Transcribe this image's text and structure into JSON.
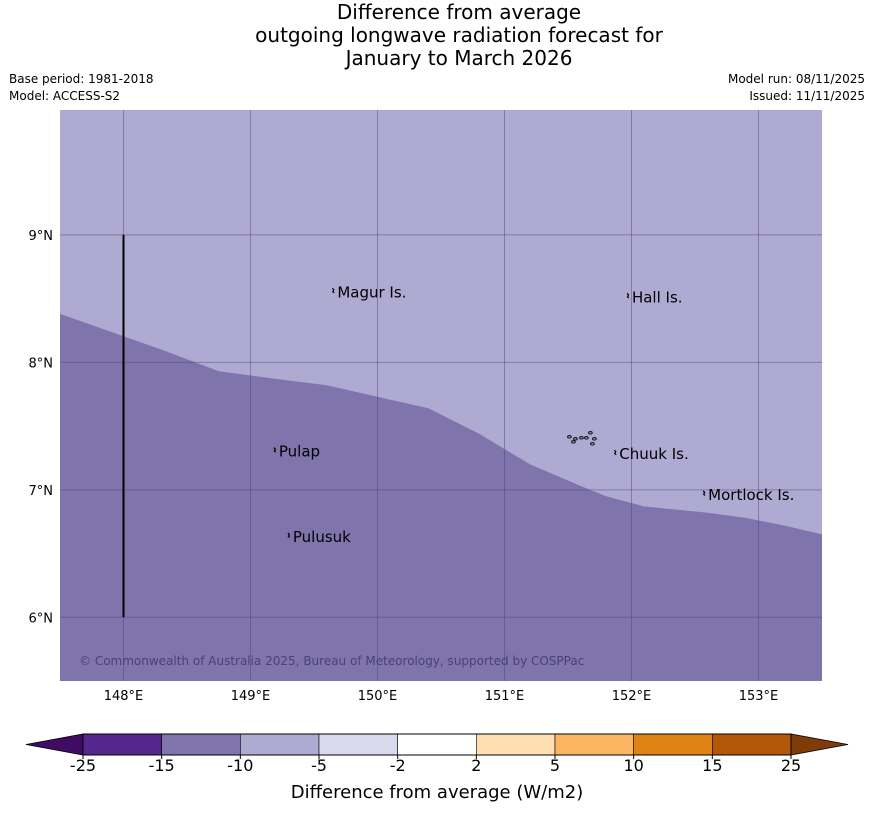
{
  "title": {
    "line1": "Difference from average",
    "line2": "outgoing longwave radiation forecast for",
    "line3": "January to March 2026"
  },
  "meta": {
    "base_period": "Base period: 1981-2018",
    "model": "Model: ACCESS-S2",
    "model_run": "Model run: 08/11/2025",
    "issued": "Issued: 11/11/2025"
  },
  "map": {
    "extent": {
      "lon_min": 147.5,
      "lon_max": 153.5,
      "lat_min": 5.5,
      "lat_max": 9.98
    },
    "longitude_ticks": [
      {
        "value": 148,
        "label": "148°E"
      },
      {
        "value": 149,
        "label": "149°E"
      },
      {
        "value": 150,
        "label": "150°E"
      },
      {
        "value": 151,
        "label": "151°E"
      },
      {
        "value": 152,
        "label": "152°E"
      },
      {
        "value": 153,
        "label": "153°E"
      }
    ],
    "latitude_ticks": [
      {
        "value": 9,
        "label": "9°N"
      },
      {
        "value": 8,
        "label": "8°N"
      },
      {
        "value": 7,
        "label": "7°N"
      },
      {
        "value": 6,
        "label": "6°N"
      }
    ],
    "gridlines": true,
    "region_colors": {
      "minus_10_to_minus_5": "#afaad1",
      "minus_15_to_minus_10": "#7f74ac"
    },
    "boundary_line": [
      [
        147.5,
        8.38
      ],
      [
        147.9,
        8.24
      ],
      [
        148.3,
        8.1
      ],
      [
        148.75,
        7.93
      ],
      [
        149.2,
        7.87
      ],
      [
        149.6,
        7.82
      ],
      [
        150.0,
        7.73
      ],
      [
        150.4,
        7.64
      ],
      [
        150.8,
        7.44
      ],
      [
        151.2,
        7.2
      ],
      [
        151.6,
        7.03
      ],
      [
        151.8,
        6.95
      ],
      [
        152.1,
        6.87
      ],
      [
        152.6,
        6.82
      ],
      [
        152.9,
        6.78
      ],
      [
        153.2,
        6.72
      ],
      [
        153.5,
        6.65
      ]
    ],
    "vertical_line": {
      "lon": 148.0,
      "lat_from": 6.0,
      "lat_to": 9.0
    },
    "places": [
      {
        "name": "Magur Is.",
        "lon": 149.66,
        "lat": 8.55
      },
      {
        "name": "Hall Is.",
        "lon": 151.98,
        "lat": 8.51
      },
      {
        "name": "Pulap",
        "lon": 149.2,
        "lat": 7.3
      },
      {
        "name": "Chuuk Is.",
        "lon": 151.88,
        "lat": 7.28
      },
      {
        "name": "Mortlock Is.",
        "lon": 152.58,
        "lat": 6.96
      },
      {
        "name": "Pulusuk",
        "lon": 149.31,
        "lat": 6.63
      }
    ],
    "copyright": "© Commonwealth of Australia 2025, Bureau of Meteorology, supported by COSPPac"
  },
  "colorbar": {
    "label": "Difference from average (W/m2)",
    "ticks": [
      "-25",
      "-15",
      "-10",
      "-5",
      "-2",
      "2",
      "5",
      "10",
      "15",
      "25"
    ],
    "under_color": "#3f0b63",
    "over_color": "#7f3b08",
    "colors": [
      "#54278f",
      "#7f74ac",
      "#afaad1",
      "#d9d9ec",
      "#ffffff",
      "#fddfb3",
      "#fdb563",
      "#e08314",
      "#b35806"
    ]
  }
}
